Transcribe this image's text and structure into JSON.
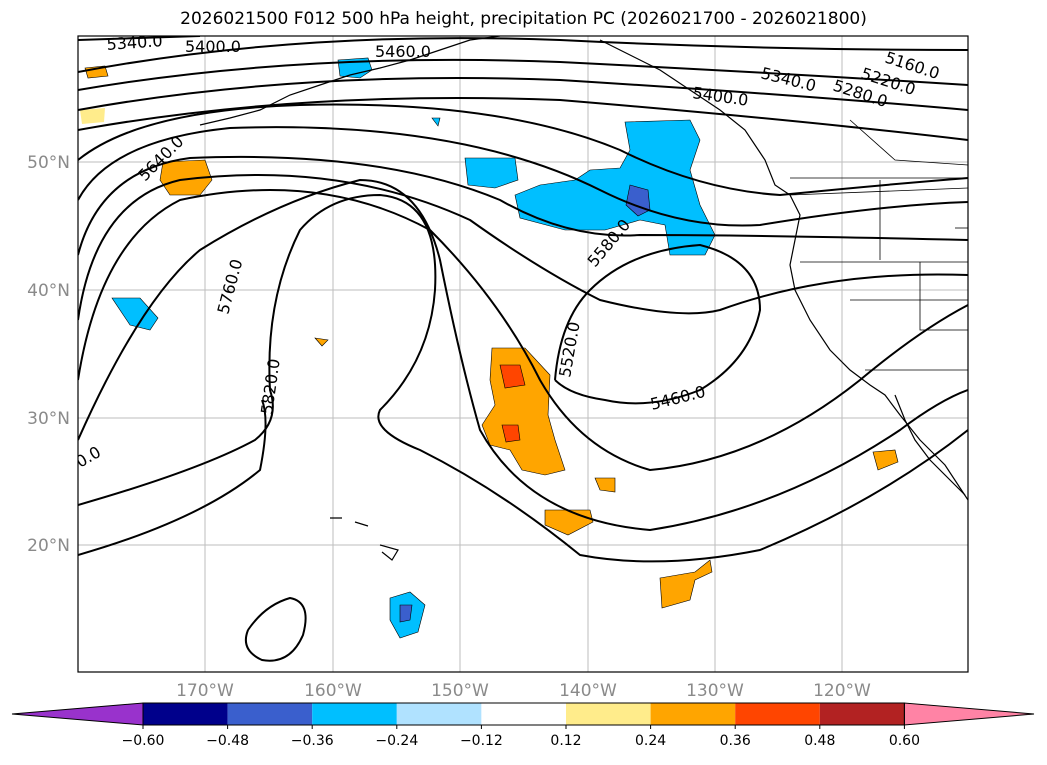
{
  "title": "2026021500 F012 500 hPa height, precipitation PC (2026021700 - 2026021800)",
  "map": {
    "lat_labels": [
      "50°N",
      "40°N",
      "30°N",
      "20°N"
    ],
    "lon_labels": [
      "170°W",
      "160°W",
      "150°W",
      "140°W",
      "130°W",
      "120°W"
    ],
    "contour_labels": [
      "5340.0",
      "5400.0",
      "5460.0",
      "5160.0",
      "5220.0",
      "5280.0",
      "5340.0",
      "5400.0",
      "5640.0",
      "5760.0",
      "5820.0",
      "5580.0",
      "5520.0",
      "5460.0",
      "0.0"
    ]
  },
  "colorbar": {
    "ticks": [
      "−0.60",
      "−0.48",
      "−0.36",
      "−0.24",
      "−0.12",
      "0.12",
      "0.24",
      "0.36",
      "0.48",
      "0.60"
    ],
    "colors": [
      "#9932cc",
      "#00008b",
      "#3a5fcd",
      "#00bfff",
      "#b0e2ff",
      "#ffffff",
      "#ffec8b",
      "#ffa500",
      "#ff4500",
      "#b22222",
      "#ff83a5"
    ]
  }
}
